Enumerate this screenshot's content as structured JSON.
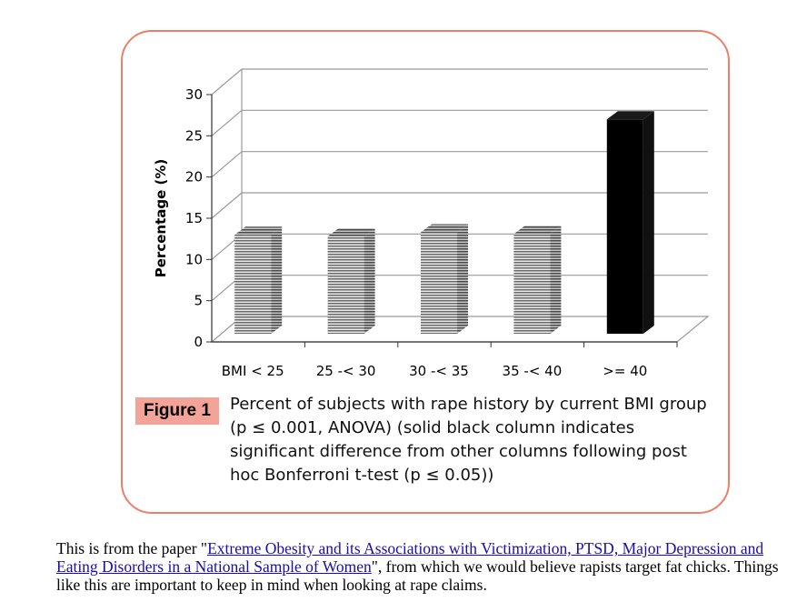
{
  "chart_data": {
    "type": "bar",
    "categories": [
      "BMI < 25",
      "25 -< 30",
      "30 -< 35",
      "35 -< 40",
      ">= 40"
    ],
    "values": [
      12.0,
      11.8,
      12.3,
      12.1,
      26.0
    ],
    "highlight": [
      false,
      false,
      false,
      false,
      true
    ],
    "ylabel": "Percentage (%)",
    "ylim": [
      0,
      30
    ],
    "yticks": [
      0,
      5,
      10,
      15,
      20,
      25,
      30
    ],
    "grid": true,
    "style": "3d",
    "colors": {
      "normal_bar": "#b8b8b8",
      "highlight_bar": "#000000",
      "grid": "#9a9a9a"
    }
  },
  "figure": {
    "label": "Figure 1",
    "caption": "Percent of subjects with rape history by current BMI group (p ≤ 0.001, ANOVA) (solid black column indicates significant difference from other columns following post hoc Bonferroni t-test (p ≤ 0.05))"
  },
  "footer": {
    "prefix": "This is from the paper \"",
    "link_text": "Extreme Obesity and its Associations with Victimization, PTSD, Major Depression and Eating Disorders in a National Sample of Women",
    "suffix": "\", from which we would believe rapists target fat chicks. Things like this are important to keep in mind when looking at rape claims."
  },
  "colors": {
    "card_border": "#e8806a",
    "figure_label_bg": "#f4a398",
    "link": "#1a0dab"
  }
}
